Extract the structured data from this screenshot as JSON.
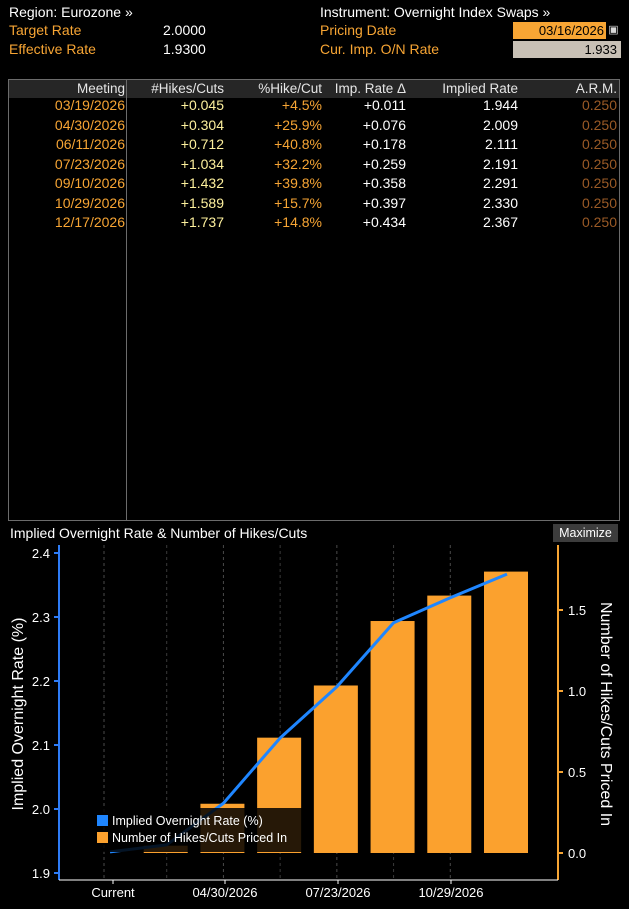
{
  "header": {
    "region_label": "Region: Eurozone »",
    "target_rate_label": "Target Rate",
    "target_rate_value": "2.0000",
    "effective_rate_label": "Effective Rate",
    "effective_rate_value": "1.9300",
    "instrument_label": "Instrument: Overnight Index Swaps »",
    "pricing_date_label": "Pricing Date",
    "pricing_date_value": "03/16/2026",
    "cur_imp_label": "Cur. Imp. O/N Rate",
    "cur_imp_value": "1.933"
  },
  "table": {
    "headers": [
      "Meeting",
      "#Hikes/Cuts",
      "%Hike/Cut",
      "Imp. Rate Δ",
      "Implied Rate",
      "A.R.M."
    ],
    "rows": [
      [
        "03/19/2026",
        "+0.045",
        "+4.5%",
        "+0.011",
        "1.944",
        "0.250"
      ],
      [
        "04/30/2026",
        "+0.304",
        "+25.9%",
        "+0.076",
        "2.009",
        "0.250"
      ],
      [
        "06/11/2026",
        "+0.712",
        "+40.8%",
        "+0.178",
        "2.111",
        "0.250"
      ],
      [
        "07/23/2026",
        "+1.034",
        "+32.2%",
        "+0.259",
        "2.191",
        "0.250"
      ],
      [
        "09/10/2026",
        "+1.432",
        "+39.8%",
        "+0.358",
        "2.291",
        "0.250"
      ],
      [
        "10/29/2026",
        "+1.589",
        "+15.7%",
        "+0.397",
        "2.330",
        "0.250"
      ],
      [
        "12/17/2026",
        "+1.737",
        "+14.8%",
        "+0.434",
        "2.367",
        "0.250"
      ]
    ]
  },
  "chart_panel": {
    "title": "Implied Overnight Rate & Number of Hikes/Cuts",
    "maximize_label": "Maximize"
  },
  "chart_data": {
    "type": "bar",
    "x_ticks": [
      "Current",
      "04/30/2026",
      "07/23/2026",
      "10/29/2026"
    ],
    "categories": [
      "Current",
      "03/19/2026",
      "04/30/2026",
      "06/11/2026",
      "07/23/2026",
      "09/10/2026",
      "10/29/2026",
      "12/17/2026"
    ],
    "series": [
      {
        "name": "Implied Overnight Rate (%)",
        "type": "line",
        "axis": "left",
        "color": "#1f86ff",
        "values": [
          1.933,
          1.944,
          2.009,
          2.111,
          2.191,
          2.291,
          2.33,
          2.367
        ]
      },
      {
        "name": "Number of Hikes/Cuts Priced In",
        "type": "bar",
        "axis": "right",
        "color": "#fba12e",
        "values": [
          0,
          0.045,
          0.304,
          0.712,
          1.034,
          1.432,
          1.589,
          1.737
        ]
      }
    ],
    "ylabel_left": "Implied Overnight Rate (%)",
    "ylabel_right": "Number of Hikes/Cuts Priced In",
    "ylim_left": [
      1.9,
      2.4
    ],
    "yticks_left": [
      "1.9",
      "2.0",
      "2.1",
      "2.2",
      "2.3",
      "2.4"
    ],
    "ylim_right": [
      -0.05,
      1.9
    ],
    "yticks_right": [
      "0.0",
      "0.5",
      "1.0",
      "1.5"
    ],
    "grid": "vertical dashed",
    "legend_position": "bottom-left"
  },
  "colors": {
    "accent_orange": "#f7a534",
    "line_blue": "#1f86ff",
    "bar_orange": "#fba12e"
  }
}
